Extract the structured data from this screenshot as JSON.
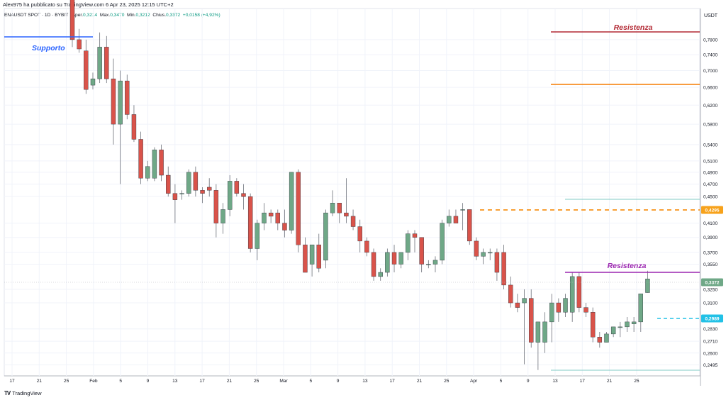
{
  "header": {
    "publisher_line": "Alex975 ha pubblicato su TradingView.com 6 Apr 23, 2025 12:15 UTC+2"
  },
  "legend": {
    "symbol": "ENAUSDT SPOT · 1D · BYBIT",
    "open_label": "Aper.",
    "open": "0,3214",
    "high_label": "Max.",
    "high": "0,3470",
    "low_label": "Min.",
    "low": "0,3212",
    "close_label": "Chius.",
    "close": "0,3372",
    "change": "+0,0158 (+4,92%)"
  },
  "footer": {
    "brand": "TradingView",
    "logo": "TV"
  },
  "chart_data": {
    "type": "candlestick",
    "currency": "USDT",
    "scale": "log",
    "ylim": [
      0.24,
      0.87
    ],
    "y_ticks": [
      "0,7800",
      "0,7400",
      "0,7000",
      "0,6600",
      "0,6200",
      "0,5800",
      "0,5400",
      "0,5100",
      "0,4900",
      "0,4700",
      "0,4500",
      "0,4100",
      "0,3900",
      "0,3700",
      "0,3550",
      "0,3250",
      "0,3100",
      "0,2830",
      "0,2710",
      "0,2600",
      "0,2495"
    ],
    "x_ticks": [
      "17",
      "21",
      "25",
      "Feb",
      "5",
      "9",
      "13",
      "17",
      "21",
      "25",
      "Mar",
      "5",
      "9",
      "13",
      "17",
      "21",
      "25",
      "Apr",
      "5",
      "9",
      "13",
      "17",
      "21",
      "25"
    ],
    "last_price": "0,3372",
    "price_tags": [
      {
        "value": "0,4295",
        "color": "#f7a21b"
      },
      {
        "value": "0,2989",
        "color": "#22c1e6"
      }
    ],
    "annotations": [
      {
        "text": "Supporto",
        "color": "#2962ff"
      },
      {
        "text": "Resistenza",
        "color": "#b22833"
      },
      {
        "text": "Resistenza",
        "color": "#9c27b0"
      }
    ],
    "colors": {
      "up": "#6fa887",
      "down": "#d9534a",
      "support": "#2962ff",
      "res_red": "#b22833",
      "res_orange": "#f57c00",
      "dash_orange": "#f7931a",
      "res_purple": "#9c27b0",
      "dash_cyan": "#22c1e6",
      "teal": "#80cbc4"
    },
    "candles": [
      [
        0.905,
        0.92,
        0.76,
        0.78
      ],
      [
        0.78,
        0.81,
        0.745,
        0.755
      ],
      [
        0.75,
        0.78,
        0.645,
        0.655
      ],
      [
        0.665,
        0.695,
        0.655,
        0.68
      ],
      [
        0.68,
        0.8,
        0.67,
        0.76
      ],
      [
        0.76,
        0.79,
        0.67,
        0.68
      ],
      [
        0.68,
        0.73,
        0.54,
        0.58
      ],
      [
        0.58,
        0.7,
        0.47,
        0.675
      ],
      [
        0.675,
        0.69,
        0.59,
        0.6
      ],
      [
        0.6,
        0.62,
        0.545,
        0.55
      ],
      [
        0.55,
        0.565,
        0.47,
        0.48
      ],
      [
        0.48,
        0.51,
        0.475,
        0.5
      ],
      [
        0.48,
        0.535,
        0.475,
        0.53
      ],
      [
        0.53,
        0.54,
        0.475,
        0.485
      ],
      [
        0.485,
        0.5,
        0.45,
        0.455
      ],
      [
        0.455,
        0.47,
        0.41,
        0.445
      ],
      [
        0.455,
        0.46,
        0.445,
        0.455
      ],
      [
        0.455,
        0.495,
        0.45,
        0.49
      ],
      [
        0.49,
        0.5,
        0.45,
        0.46
      ],
      [
        0.46,
        0.465,
        0.44,
        0.455
      ],
      [
        0.465,
        0.48,
        0.45,
        0.46
      ],
      [
        0.46,
        0.47,
        0.39,
        0.41
      ],
      [
        0.41,
        0.44,
        0.395,
        0.43
      ],
      [
        0.43,
        0.485,
        0.42,
        0.475
      ],
      [
        0.475,
        0.48,
        0.45,
        0.455
      ],
      [
        0.455,
        0.47,
        0.43,
        0.45
      ],
      [
        0.45,
        0.455,
        0.37,
        0.375
      ],
      [
        0.375,
        0.415,
        0.36,
        0.41
      ],
      [
        0.41,
        0.44,
        0.4,
        0.425
      ],
      [
        0.425,
        0.43,
        0.41,
        0.42
      ],
      [
        0.425,
        0.43,
        0.4,
        0.41
      ],
      [
        0.41,
        0.43,
        0.39,
        0.4
      ],
      [
        0.4,
        0.49,
        0.395,
        0.49
      ],
      [
        0.49,
        0.495,
        0.37,
        0.38
      ],
      [
        0.38,
        0.39,
        0.345,
        0.345
      ],
      [
        0.355,
        0.38,
        0.34,
        0.38
      ],
      [
        0.38,
        0.395,
        0.345,
        0.35
      ],
      [
        0.36,
        0.43,
        0.35,
        0.425
      ],
      [
        0.425,
        0.46,
        0.42,
        0.44
      ],
      [
        0.44,
        0.44,
        0.41,
        0.425
      ],
      [
        0.425,
        0.48,
        0.41,
        0.42
      ],
      [
        0.42,
        0.43,
        0.4,
        0.405
      ],
      [
        0.405,
        0.415,
        0.37,
        0.385
      ],
      [
        0.385,
        0.39,
        0.365,
        0.37
      ],
      [
        0.37,
        0.375,
        0.335,
        0.34
      ],
      [
        0.34,
        0.35,
        0.335,
        0.345
      ],
      [
        0.345,
        0.375,
        0.34,
        0.37
      ],
      [
        0.37,
        0.38,
        0.345,
        0.355
      ],
      [
        0.355,
        0.37,
        0.35,
        0.37
      ],
      [
        0.37,
        0.4,
        0.36,
        0.395
      ],
      [
        0.395,
        0.4,
        0.37,
        0.39
      ],
      [
        0.39,
        0.39,
        0.345,
        0.355
      ],
      [
        0.355,
        0.36,
        0.35,
        0.355
      ],
      [
        0.355,
        0.365,
        0.345,
        0.36
      ],
      [
        0.36,
        0.415,
        0.355,
        0.41
      ],
      [
        0.41,
        0.43,
        0.405,
        0.42
      ],
      [
        0.42,
        0.43,
        0.41,
        0.41
      ],
      [
        0.43,
        0.44,
        0.4,
        0.43
      ],
      [
        0.43,
        0.43,
        0.38,
        0.385
      ],
      [
        0.385,
        0.39,
        0.36,
        0.365
      ],
      [
        0.365,
        0.375,
        0.355,
        0.37
      ],
      [
        0.37,
        0.375,
        0.36,
        0.37
      ],
      [
        0.37,
        0.375,
        0.335,
        0.345
      ],
      [
        0.37,
        0.38,
        0.325,
        0.33
      ],
      [
        0.33,
        0.34,
        0.305,
        0.31
      ],
      [
        0.31,
        0.32,
        0.3,
        0.305
      ],
      [
        0.31,
        0.325,
        0.25,
        0.315
      ],
      [
        0.315,
        0.325,
        0.265,
        0.27
      ],
      [
        0.27,
        0.29,
        0.245,
        0.29
      ],
      [
        0.27,
        0.3,
        0.26,
        0.29
      ],
      [
        0.29,
        0.32,
        0.27,
        0.31
      ],
      [
        0.31,
        0.315,
        0.29,
        0.3
      ],
      [
        0.3,
        0.32,
        0.295,
        0.315
      ],
      [
        0.3,
        0.345,
        0.29,
        0.34
      ],
      [
        0.34,
        0.345,
        0.3,
        0.305
      ],
      [
        0.305,
        0.31,
        0.295,
        0.3
      ],
      [
        0.3,
        0.305,
        0.27,
        0.275
      ],
      [
        0.275,
        0.28,
        0.265,
        0.27
      ],
      [
        0.27,
        0.28,
        0.27,
        0.278
      ],
      [
        0.278,
        0.285,
        0.275,
        0.285
      ],
      [
        0.285,
        0.29,
        0.275,
        0.285
      ],
      [
        0.285,
        0.295,
        0.28,
        0.29
      ],
      [
        0.288,
        0.295,
        0.28,
        0.29
      ],
      [
        0.29,
        0.32,
        0.28,
        0.32
      ],
      [
        0.3214,
        0.347,
        0.3212,
        0.3372
      ]
    ]
  }
}
